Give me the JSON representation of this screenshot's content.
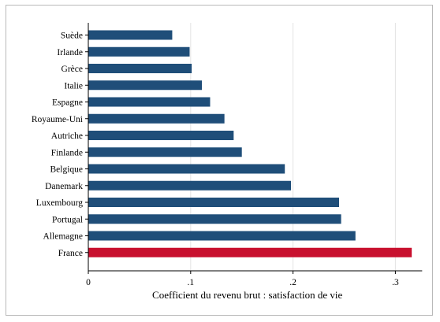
{
  "chart_data": {
    "type": "bar",
    "orientation": "horizontal",
    "categories": [
      "Suède",
      "Irlande",
      "Grèce",
      "Italie",
      "Espagne",
      "Royaume-Uni",
      "Autriche",
      "Finlande",
      "Belgique",
      "Danemark",
      "Luxembourg",
      "Portugal",
      "Allemagne",
      "France"
    ],
    "values": [
      0.082,
      0.099,
      0.101,
      0.111,
      0.119,
      0.133,
      0.142,
      0.15,
      0.192,
      0.198,
      0.245,
      0.247,
      0.261,
      0.316
    ],
    "xlabel": "Coefficient du revenu brut : satisfaction de vie",
    "ylabel": "",
    "xlim": [
      0,
      0.32
    ],
    "xticks": [
      0,
      0.1,
      0.2,
      0.3
    ],
    "xtick_labels": [
      "0",
      ".1",
      ".2",
      ".3"
    ],
    "grid": "vertical",
    "highlight_category": "France",
    "colors": {
      "bar": "#1f4e79",
      "highlight": "#c8102e",
      "grid": "#e3e3e3",
      "axis": "#000000"
    }
  }
}
